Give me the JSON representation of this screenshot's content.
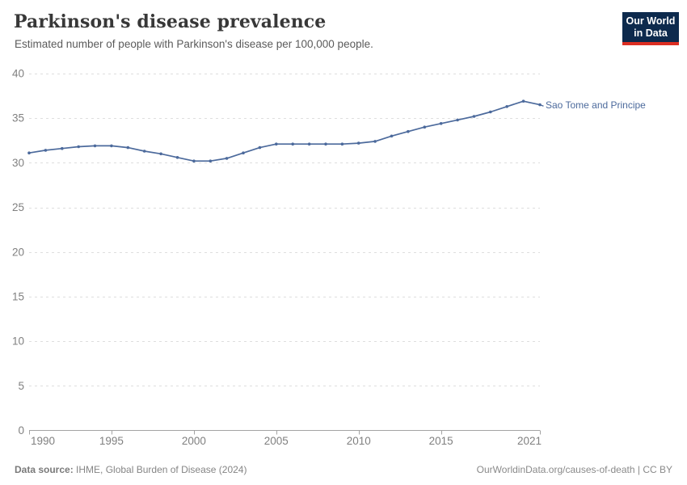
{
  "header": {
    "title": "Parkinson's disease prevalence",
    "subtitle": "Estimated number of people with Parkinson's disease per 100,000 people.",
    "logo": {
      "line1": "Our World",
      "line2": "in Data",
      "bg_color": "#0d2a4d",
      "accent_color": "#dc2e22"
    }
  },
  "chart_data": {
    "type": "line",
    "title": "Parkinson's disease prevalence",
    "subtitle": "Estimated number of people with Parkinson's disease per 100,000 people.",
    "x": [
      1990,
      1991,
      1992,
      1993,
      1994,
      1995,
      1996,
      1997,
      1998,
      1999,
      2000,
      2001,
      2002,
      2003,
      2004,
      2005,
      2006,
      2007,
      2008,
      2009,
      2010,
      2011,
      2012,
      2013,
      2014,
      2015,
      2016,
      2017,
      2018,
      2019,
      2020,
      2021
    ],
    "series": [
      {
        "name": "Sao Tome and Principe",
        "color": "#4c6a9c",
        "values": [
          31.1,
          31.4,
          31.6,
          31.8,
          31.9,
          31.9,
          31.7,
          31.3,
          31.0,
          30.6,
          30.2,
          30.2,
          30.5,
          31.1,
          31.7,
          32.1,
          32.1,
          32.1,
          32.1,
          32.1,
          32.2,
          32.4,
          33.0,
          33.5,
          34.0,
          34.4,
          34.8,
          35.2,
          35.7,
          36.3,
          36.9,
          36.5
        ]
      }
    ],
    "xlabel": "",
    "ylabel": "",
    "xlim": [
      1990,
      2021
    ],
    "ylim": [
      0,
      40
    ],
    "xticks": [
      1990,
      1995,
      2000,
      2005,
      2010,
      2015,
      2021
    ],
    "yticks": [
      0,
      5,
      10,
      15,
      20,
      25,
      30,
      35,
      40
    ],
    "grid": "horizontal-dashed",
    "legend_position": "line-end-label"
  },
  "footer": {
    "source_label": "Data source:",
    "source_text": " IHME, Global Burden of Disease (2024)",
    "credit": "OurWorldinData.org/causes-of-death | CC BY"
  },
  "colors": {
    "line": "#4c6a9c",
    "grid": "#dedede",
    "axis": "#a3a3a3",
    "tick_label": "#808080",
    "title_text": "#383838",
    "subtitle_text": "#5b5b5b",
    "footer_text": "#858585"
  }
}
